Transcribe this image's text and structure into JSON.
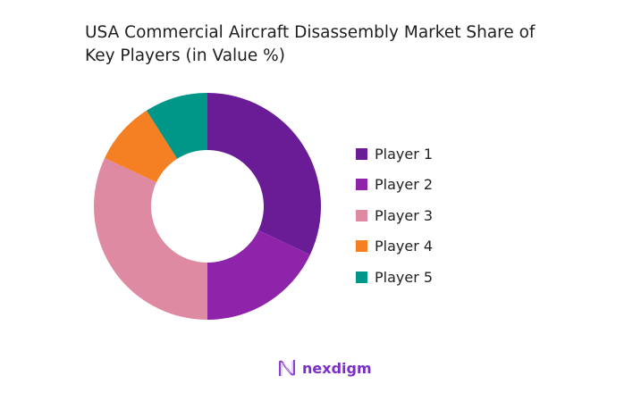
{
  "chart_data": {
    "type": "pie",
    "subtype": "donut",
    "title": "USA Commercial Aircraft Disassembly Market Share of Key Players (in Value %)",
    "categories": [
      "Player 1",
      "Player 2",
      "Player 3",
      "Player 4",
      "Player 5"
    ],
    "values": [
      32,
      18,
      32,
      9,
      9
    ],
    "colors": [
      "#6a1b96",
      "#8e24aa",
      "#de8aa3",
      "#f57f23",
      "#009688"
    ],
    "legend_position": "right"
  },
  "brand": {
    "name": "nexdigm",
    "color": "#7b2fc9"
  }
}
